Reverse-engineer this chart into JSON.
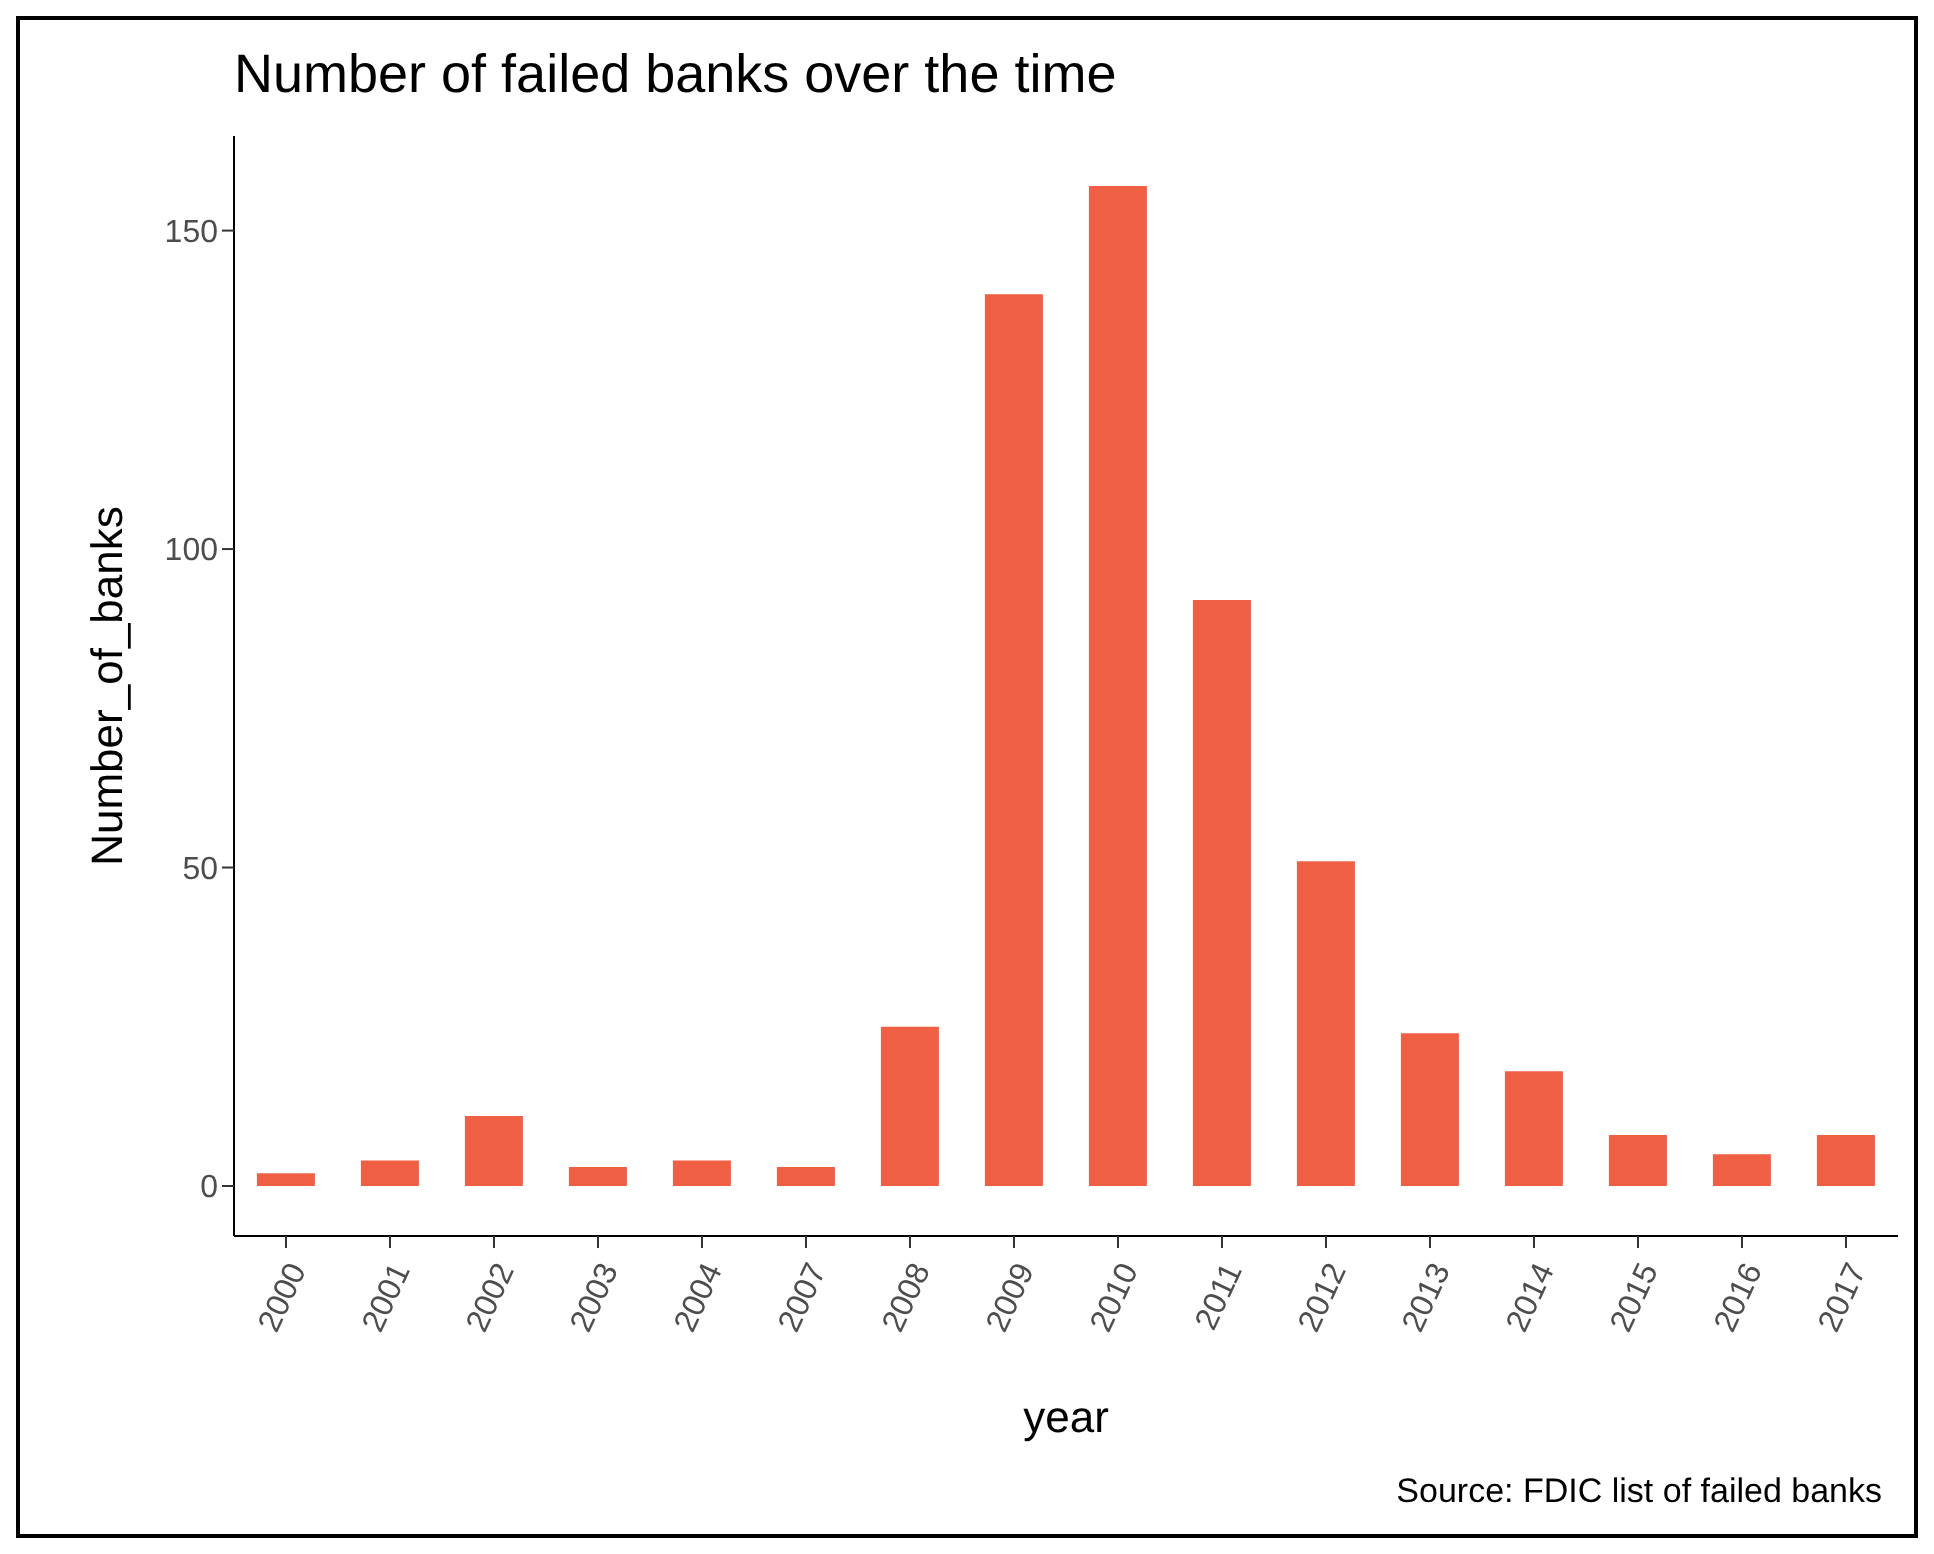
{
  "chart_data": {
    "type": "bar",
    "title": "Number of failed banks over the time",
    "xlabel": "year",
    "ylabel": "Number_of_banks",
    "categories": [
      "2000",
      "2001",
      "2002",
      "2003",
      "2004",
      "2007",
      "2008",
      "2009",
      "2010",
      "2011",
      "2012",
      "2013",
      "2014",
      "2015",
      "2016",
      "2017"
    ],
    "values": [
      2,
      4,
      11,
      3,
      4,
      3,
      25,
      140,
      157,
      92,
      51,
      24,
      18,
      8,
      5,
      8
    ],
    "color": "#ef5f44",
    "ylim": [
      -7.85,
      164.85
    ],
    "yticks": [
      0,
      50,
      100,
      150
    ],
    "grid": false,
    "legend": false,
    "annotations": [
      "Source: FDIC list of failed banks"
    ]
  }
}
